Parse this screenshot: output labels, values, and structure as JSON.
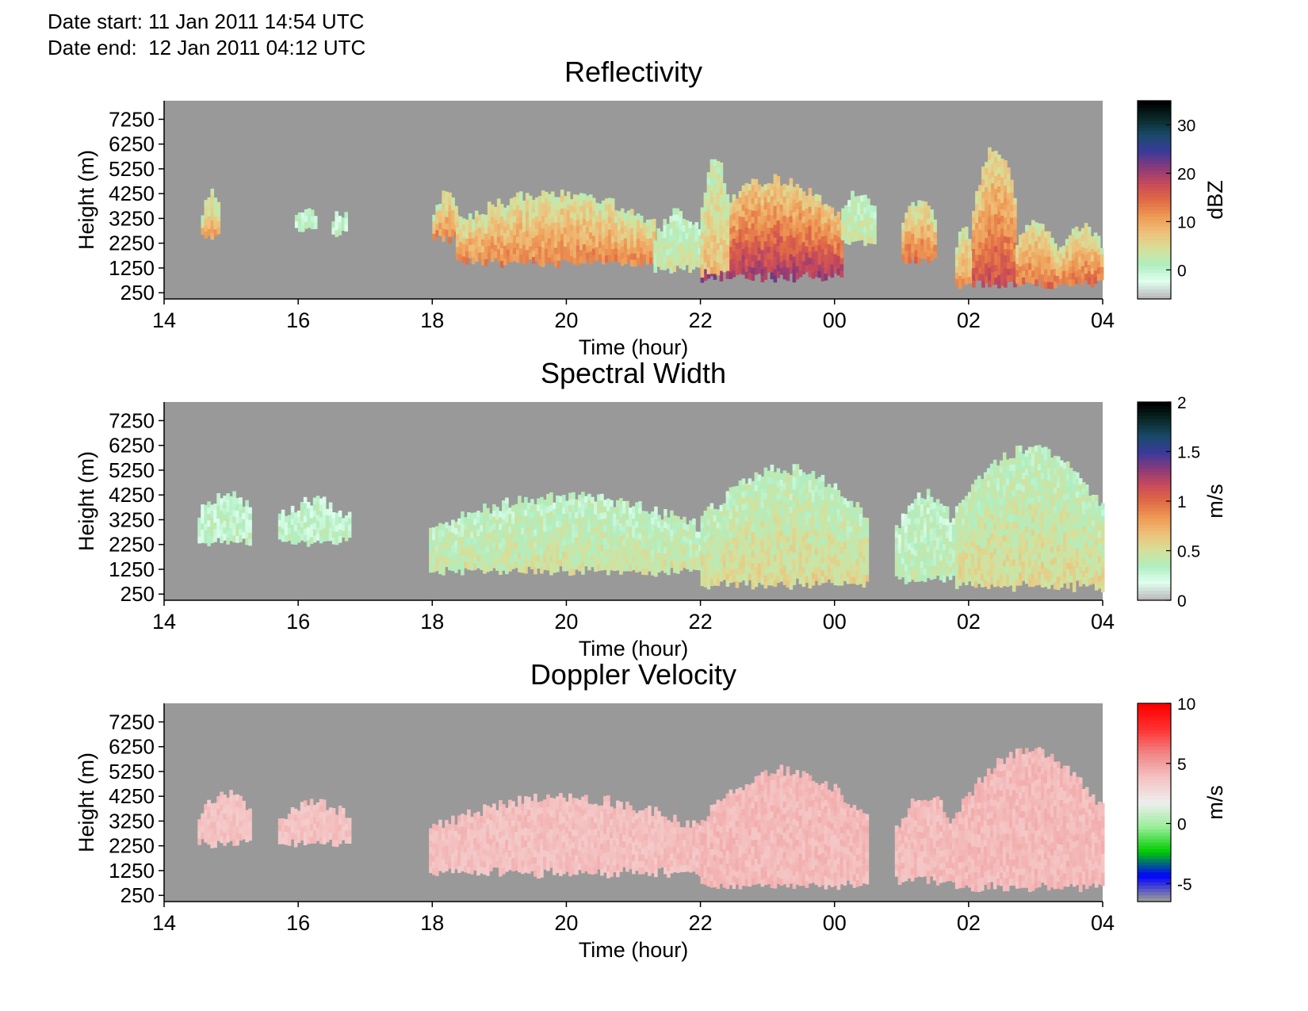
{
  "header": {
    "date_start": "Date start: 11 Jan 2011 14:54 UTC",
    "date_end": "Date end:  12 Jan 2011 04:12 UTC"
  },
  "colors": {
    "background_fill": "#999999",
    "axis": "#000000"
  },
  "chart_data": [
    {
      "type": "heatmap",
      "title": "Reflectivity",
      "xlabel": "Time (hour)",
      "ylabel": "Height (m)",
      "x_ticks": [
        "14",
        "16",
        "18",
        "20",
        "22",
        "00",
        "02",
        "04"
      ],
      "y_ticks": [
        "7250",
        "6250",
        "5250",
        "4250",
        "3250",
        "2250",
        "1250",
        "250"
      ],
      "xlim_hours": [
        14,
        28
      ],
      "ylim": [
        0,
        8000
      ],
      "colorbar": {
        "label": "dBZ",
        "ticks": [
          "30",
          "20",
          "10",
          "0"
        ],
        "tick_values": [
          30,
          20,
          10,
          0
        ],
        "range": [
          -6,
          35
        ],
        "colormap": [
          "#bbbbbb",
          "#e0fff0",
          "#b0eec0",
          "#d6e09a",
          "#eec07a",
          "#ee9a55",
          "#e06a45",
          "#c84a5a",
          "#8a3a7a",
          "#3a3a9a",
          "#1a4a6a",
          "#0a2a2a",
          "#000000"
        ]
      },
      "echo_regions": [
        {
          "t0": 14.55,
          "t1": 14.82,
          "base": 2700,
          "top": 4200,
          "strength": 0.35
        },
        {
          "t0": 15.95,
          "t1": 16.25,
          "base": 3000,
          "top": 3600,
          "strength": 0.05
        },
        {
          "t0": 16.5,
          "t1": 16.72,
          "base": 2700,
          "top": 3400,
          "strength": 0.05
        },
        {
          "t0": 18.0,
          "t1": 18.35,
          "base": 2600,
          "top": 4100,
          "strength": 0.45
        },
        {
          "t0": 18.35,
          "t1": 21.3,
          "base": 1600,
          "top": 4200,
          "strength": 0.45
        },
        {
          "t0": 21.3,
          "t1": 22.0,
          "base": 1300,
          "top": 3400,
          "strength": 0.15
        },
        {
          "t0": 22.0,
          "t1": 24.1,
          "base": 1000,
          "top": 4700,
          "strength": 0.7
        },
        {
          "t0": 22.0,
          "t1": 22.4,
          "base": 1200,
          "top": 5600,
          "strength": 0.3
        },
        {
          "t0": 24.1,
          "t1": 24.6,
          "base": 2400,
          "top": 4200,
          "strength": 0.15
        },
        {
          "t0": 25.0,
          "t1": 25.5,
          "base": 1700,
          "top": 3900,
          "strength": 0.5
        },
        {
          "t0": 25.8,
          "t1": 26.05,
          "base": 700,
          "top": 2800,
          "strength": 0.4
        },
        {
          "t0": 26.05,
          "t1": 26.7,
          "base": 700,
          "top": 6000,
          "strength": 0.6
        },
        {
          "t0": 26.7,
          "t1": 27.3,
          "base": 700,
          "top": 3100,
          "strength": 0.5
        },
        {
          "t0": 27.3,
          "t1": 28.0,
          "base": 700,
          "top": 2800,
          "strength": 0.5
        }
      ]
    },
    {
      "type": "heatmap",
      "title": "Spectral Width",
      "xlabel": "Time (hour)",
      "ylabel": "Height (m)",
      "x_ticks": [
        "14",
        "16",
        "18",
        "20",
        "22",
        "00",
        "02",
        "04"
      ],
      "y_ticks": [
        "7250",
        "6250",
        "5250",
        "4250",
        "3250",
        "2250",
        "1250",
        "250"
      ],
      "xlim_hours": [
        14,
        28
      ],
      "ylim": [
        0,
        8000
      ],
      "colorbar": {
        "label": "m/s",
        "ticks": [
          "2",
          "1.5",
          "1",
          "0.5",
          "0"
        ],
        "tick_values": [
          2,
          1.5,
          1,
          0.5,
          0
        ],
        "range": [
          0,
          2
        ],
        "colormap": [
          "#bbbbbb",
          "#e0fff0",
          "#b0eec0",
          "#d6e09a",
          "#eec07a",
          "#ee9a55",
          "#e06a45",
          "#c84a5a",
          "#8a3a7a",
          "#3a3a9a",
          "#1a4a6a",
          "#0a2a2a",
          "#000000"
        ]
      },
      "echo_regions": [
        {
          "t0": 14.5,
          "t1": 15.3,
          "base": 2500,
          "top": 4200,
          "strength": 0.05
        },
        {
          "t0": 15.7,
          "t1": 16.75,
          "base": 2500,
          "top": 3900,
          "strength": 0.05
        },
        {
          "t0": 17.95,
          "t1": 22.0,
          "base": 1300,
          "top": 4100,
          "strength": 0.15
        },
        {
          "t0": 22.0,
          "t1": 24.5,
          "base": 800,
          "top": 5200,
          "strength": 0.2
        },
        {
          "t0": 24.9,
          "t1": 25.8,
          "base": 1000,
          "top": 4200,
          "strength": 0.1
        },
        {
          "t0": 25.8,
          "t1": 28.0,
          "base": 700,
          "top": 6000,
          "strength": 0.2
        }
      ]
    },
    {
      "type": "heatmap",
      "title": "Doppler Velocity",
      "xlabel": "Time (hour)",
      "ylabel": "Height (m)",
      "x_ticks": [
        "14",
        "16",
        "18",
        "20",
        "22",
        "00",
        "02",
        "04"
      ],
      "y_ticks": [
        "7250",
        "6250",
        "5250",
        "4250",
        "3250",
        "2250",
        "1250",
        "250"
      ],
      "xlim_hours": [
        14,
        28
      ],
      "ylim": [
        0,
        8000
      ],
      "colorbar": {
        "label": "m/s",
        "ticks": [
          "10",
          "5",
          "0",
          "-5"
        ],
        "tick_values": [
          10,
          5,
          0,
          -5
        ],
        "range": [
          -6.5,
          10
        ],
        "colormap": [
          "#999999",
          "#0000ff",
          "#00cc00",
          "#99ee99",
          "#eeeeee",
          "#f4c4c4",
          "#f08888",
          "#ff3333",
          "#ff0000"
        ]
      },
      "echo_regions": [
        {
          "t0": 14.5,
          "t1": 15.3,
          "base": 2500,
          "top": 4200,
          "strength": 0.4
        },
        {
          "t0": 15.7,
          "t1": 16.75,
          "base": 2500,
          "top": 3900,
          "strength": 0.4
        },
        {
          "t0": 17.95,
          "t1": 22.0,
          "base": 1300,
          "top": 4100,
          "strength": 0.45
        },
        {
          "t0": 22.0,
          "t1": 24.5,
          "base": 800,
          "top": 5200,
          "strength": 0.55
        },
        {
          "t0": 24.9,
          "t1": 25.8,
          "base": 1000,
          "top": 4200,
          "strength": 0.5
        },
        {
          "t0": 25.8,
          "t1": 28.0,
          "base": 700,
          "top": 6000,
          "strength": 0.55
        }
      ]
    }
  ]
}
